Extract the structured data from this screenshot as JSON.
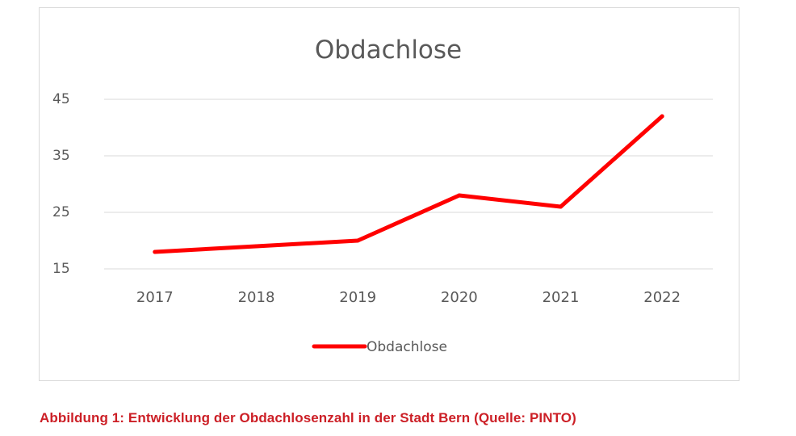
{
  "chart_data": {
    "type": "line",
    "title": "Obdachlose",
    "categories": [
      "2017",
      "2018",
      "2019",
      "2020",
      "2021",
      "2022"
    ],
    "series": [
      {
        "name": "Obdachlose",
        "values": [
          18,
          19,
          20,
          28,
          26,
          42
        ],
        "color": "#ff0000"
      }
    ],
    "yticks": [
      15,
      25,
      35,
      45
    ],
    "ylim": [
      15,
      45
    ],
    "grid": true,
    "legend_position": "bottom"
  },
  "caption": "Abbildung 1: Entwicklung der Obdachlosenzahl in der Stadt Bern (Quelle: PINTO)"
}
